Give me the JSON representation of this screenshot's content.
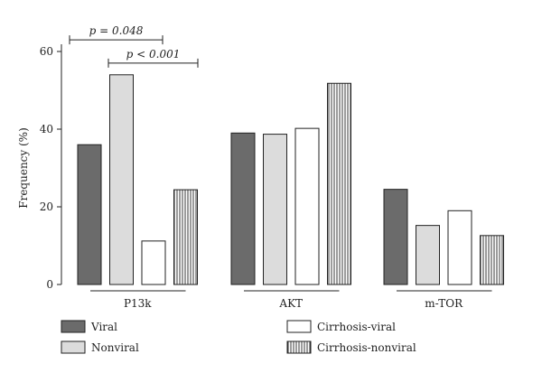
{
  "chart_data": {
    "type": "bar",
    "ylabel": "Frequency (%)",
    "xlabel": "",
    "ylim": [
      0,
      60
    ],
    "yticks": [
      0,
      20,
      40,
      60
    ],
    "categories": [
      "P13k",
      "AKT",
      "m-TOR"
    ],
    "series": [
      {
        "name": "Viral",
        "values": [
          36,
          39,
          24.5
        ],
        "fill": "#6b6b6b",
        "pattern": "solid"
      },
      {
        "name": "Nonviral",
        "values": [
          54,
          38.7,
          15.2
        ],
        "fill": "#dcdcdc",
        "pattern": "solid"
      },
      {
        "name": "Cirrhosis-viral",
        "values": [
          11.2,
          40.2,
          19
        ],
        "fill": "#ffffff",
        "pattern": "solid"
      },
      {
        "name": "Cirrhosis-nonviral",
        "values": [
          24.4,
          51.8,
          12.6
        ],
        "fill": "#ffffff",
        "pattern": "vertical-lines"
      }
    ],
    "annotations": [
      {
        "text": "p = 0.048",
        "category": 0,
        "from_series": 0,
        "to_series": 2,
        "y": 63
      },
      {
        "text": "p < 0.001",
        "category": 0,
        "from_series": 1,
        "to_series": 3,
        "y": 57
      }
    ],
    "grid": false,
    "legend_position": "bottom"
  }
}
